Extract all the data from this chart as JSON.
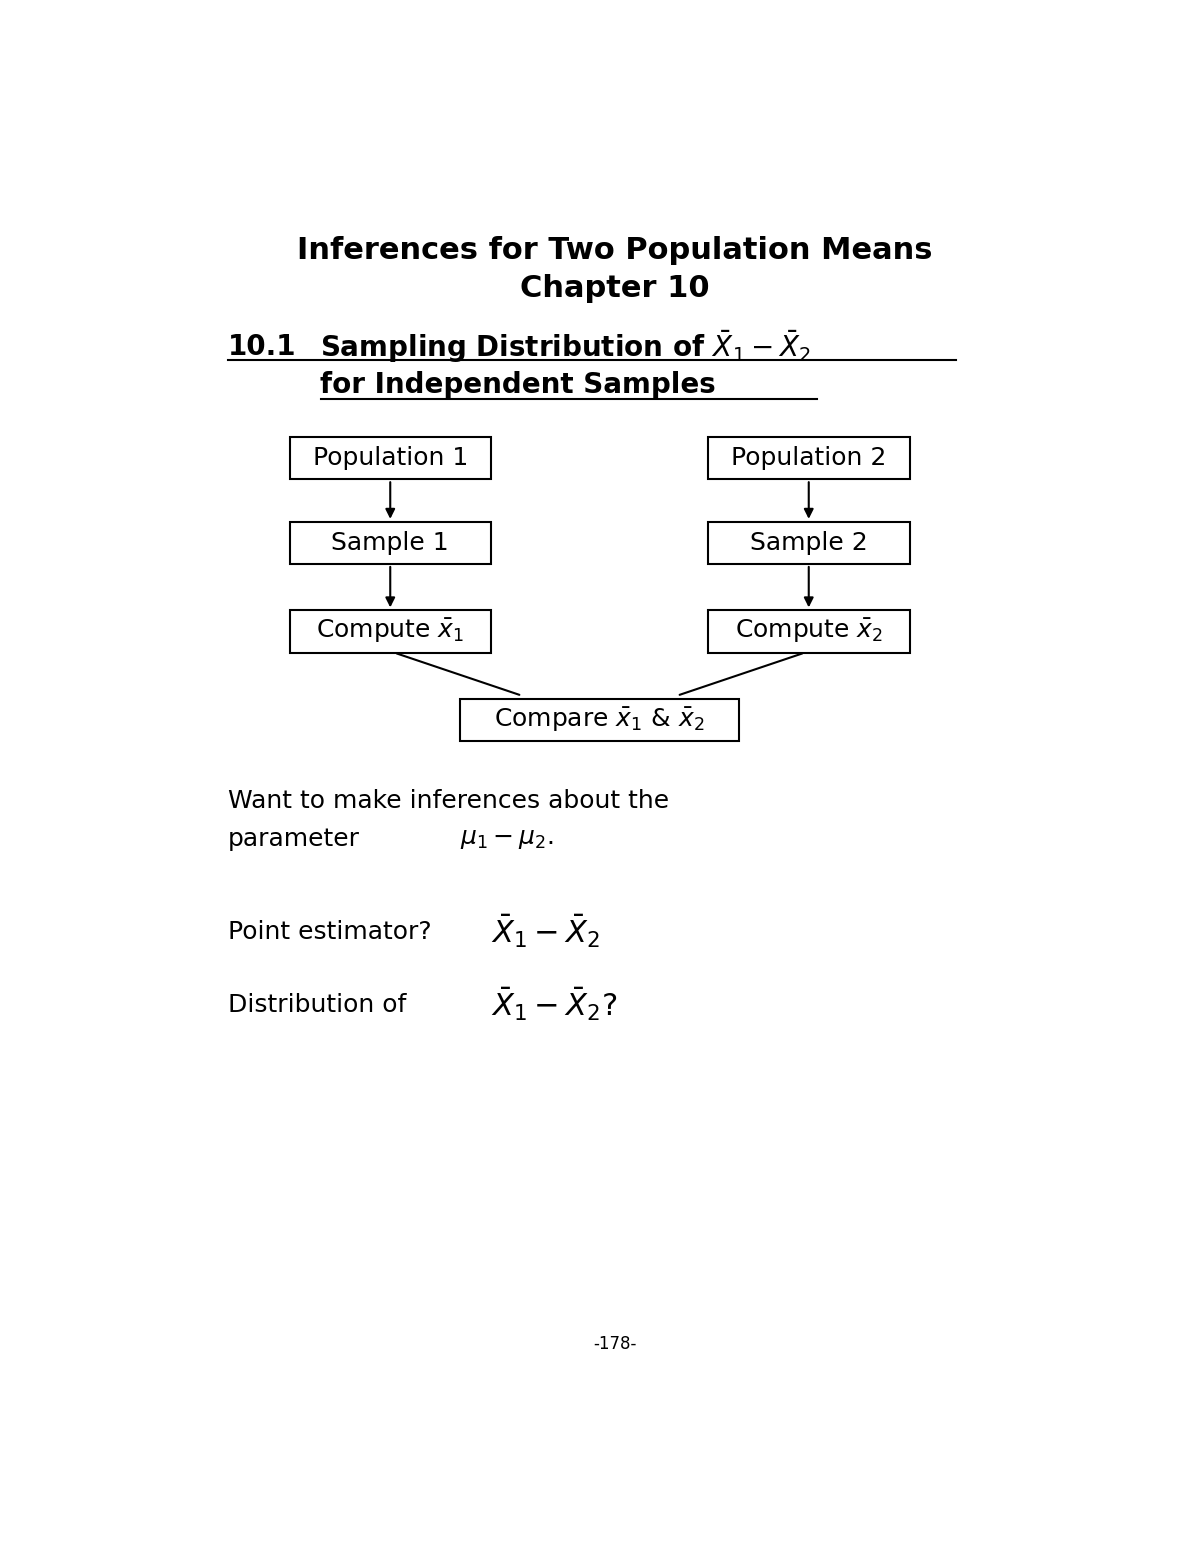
{
  "title_line1": "Inferences for Two Population Means",
  "title_line2": "Chapter 10",
  "section_label": "10.1",
  "section_title_line1": "Sampling Distribution of $\\bar{X}_1 - \\bar{X}_2$",
  "section_title_line2": "for Independent Samples",
  "want_text_line1": "Want to make inferences about the",
  "want_text_line2": "parameter",
  "param_text": "$\\mu_1 - \\mu_2$.",
  "point_label": "Point estimator?",
  "point_formula": "$\\bar{X}_1 - \\bar{X}_2$",
  "dist_label": "Distribution of",
  "dist_formula": "$\\bar{X}_1 - \\bar{X}_2$?",
  "page_number": "-178-",
  "bg_color": "#ffffff",
  "text_color": "#000000",
  "box_color": "#000000",
  "font_size_title": 22,
  "font_size_section": 20,
  "font_size_box": 18,
  "font_size_body": 18,
  "font_size_formula": 22,
  "font_size_page": 12
}
